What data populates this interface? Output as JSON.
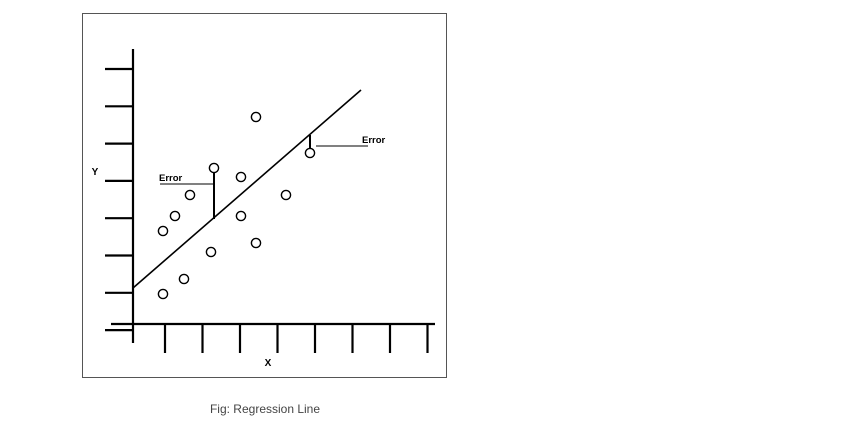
{
  "caption": "Fig: Regression Line",
  "chart_data": {
    "type": "scatter",
    "title": "",
    "xlabel": "X",
    "ylabel": "Y",
    "xlim": [
      0,
      10
    ],
    "ylim": [
      0,
      10
    ],
    "grid": false,
    "legend": "none",
    "x_ticks": 8,
    "y_ticks": 8,
    "points": [
      {
        "x": 1.0,
        "y": 1.0
      },
      {
        "x": 1.7,
        "y": 1.5
      },
      {
        "x": 1.0,
        "y": 3.1
      },
      {
        "x": 1.4,
        "y": 3.6
      },
      {
        "x": 1.9,
        "y": 4.3
      },
      {
        "x": 2.6,
        "y": 2.4
      },
      {
        "x": 2.7,
        "y": 5.2
      },
      {
        "x": 3.6,
        "y": 3.6
      },
      {
        "x": 3.6,
        "y": 4.9
      },
      {
        "x": 4.1,
        "y": 2.7
      },
      {
        "x": 4.1,
        "y": 6.9
      },
      {
        "x": 5.1,
        "y": 4.3
      },
      {
        "x": 5.9,
        "y": 5.7
      }
    ],
    "regression_line": {
      "x": [
        0,
        7.6
      ],
      "y": [
        1.2,
        7.8
      ]
    },
    "annotations": [
      {
        "text": "Error",
        "x": 2.7,
        "y_point": 5.2,
        "y_line": 3.5
      },
      {
        "text": "Error",
        "x": 5.9,
        "y_point": 5.7,
        "y_line": 6.3
      }
    ],
    "colors": {
      "axis": "#000000",
      "line": "#000000",
      "text": "#000000"
    }
  }
}
